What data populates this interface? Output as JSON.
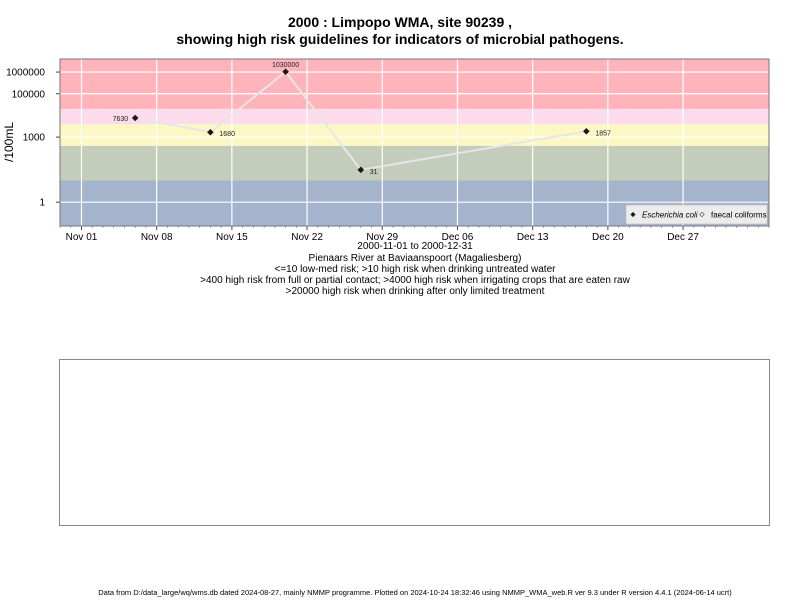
{
  "title_line1": "2000 : Limpopo WMA, site 90239 ,",
  "title_line2": "showing high risk guidelines for indicators of microbial pathogens.",
  "subtitle": {
    "date_range": "2000-11-01 to 2000-12-31",
    "site_name": "Pienaars River at Baviaanspoort (Magaliesberg)",
    "guideline1": "<=10 low-med risk; >10 high risk when drinking untreated water",
    "guideline2": ">400 high risk from full or partial contact; >4000 high risk when irrigating crops that are eaten raw",
    "guideline3": ">20000 high risk when drinking after only limited treatment"
  },
  "footer": "Data from D:/data_large/wq/wms.db dated 2024-08-27, mainly NMMP programme. Plotted on 2024-10-24 18:32:46 using NMMP_WMA_web.R ver 9.3 under R version 4.4.1 (2024-06-14 ucrt)",
  "chart_data": {
    "type": "line",
    "ylabel": "/100mL",
    "y_scale": "log10",
    "ylim": [
      0.08,
      4000000
    ],
    "xlim": [
      "2000-10-30",
      "2001-01-04"
    ],
    "x_ticks": [
      {
        "date": "2000-11-01",
        "label": "Nov 01"
      },
      {
        "date": "2000-11-08",
        "label": "Nov 08"
      },
      {
        "date": "2000-11-15",
        "label": "Nov 15"
      },
      {
        "date": "2000-11-22",
        "label": "Nov 22"
      },
      {
        "date": "2000-11-29",
        "label": "Nov 29"
      },
      {
        "date": "2000-12-06",
        "label": "Dec 06"
      },
      {
        "date": "2000-12-13",
        "label": "Dec 13"
      },
      {
        "date": "2000-12-20",
        "label": "Dec 20"
      },
      {
        "date": "2000-12-27",
        "label": "Dec 27"
      }
    ],
    "y_ticks": [
      {
        "value": 1,
        "label": "1"
      },
      {
        "value": 1000,
        "label": "1000"
      },
      {
        "value": 100000,
        "label": "100000"
      },
      {
        "value": 1000000,
        "label": "1000000"
      }
    ],
    "risk_bands": [
      {
        "from": 0.08,
        "to": 1,
        "color": "#a4b4cc"
      },
      {
        "from": 1,
        "to": 10,
        "color": "#a4b4cc"
      },
      {
        "from": 10,
        "to": 400,
        "color": "#c4ccbc"
      },
      {
        "from": 400,
        "to": 4000,
        "color": "#fbf8c4"
      },
      {
        "from": 4000,
        "to": 20000,
        "color": "#fcdcec"
      },
      {
        "from": 20000,
        "to": 4000000,
        "color": "#ffb4bc"
      }
    ],
    "series": [
      {
        "name": "Escherichia coli",
        "marker": "filled-diamond",
        "color": "#1a1a1a",
        "points": [
          {
            "date": "2000-11-06",
            "value": 7630,
            "label": "7630"
          },
          {
            "date": "2000-11-13",
            "value": 1680,
            "label": "1680"
          },
          {
            "date": "2000-11-20",
            "value": 1030000,
            "label": "1030000"
          },
          {
            "date": "2000-11-27",
            "value": 31,
            "label": "31"
          },
          {
            "date": "2000-12-18",
            "value": 1857,
            "label": "1857"
          }
        ]
      }
    ],
    "legend": {
      "placement": "bottom-right",
      "entries": [
        {
          "label": "Escherichia coli",
          "marker": "filled-diamond",
          "italic": true
        },
        {
          "label": "faecal coliforms",
          "marker": "open-diamond",
          "italic": false
        }
      ]
    },
    "grid": true
  }
}
